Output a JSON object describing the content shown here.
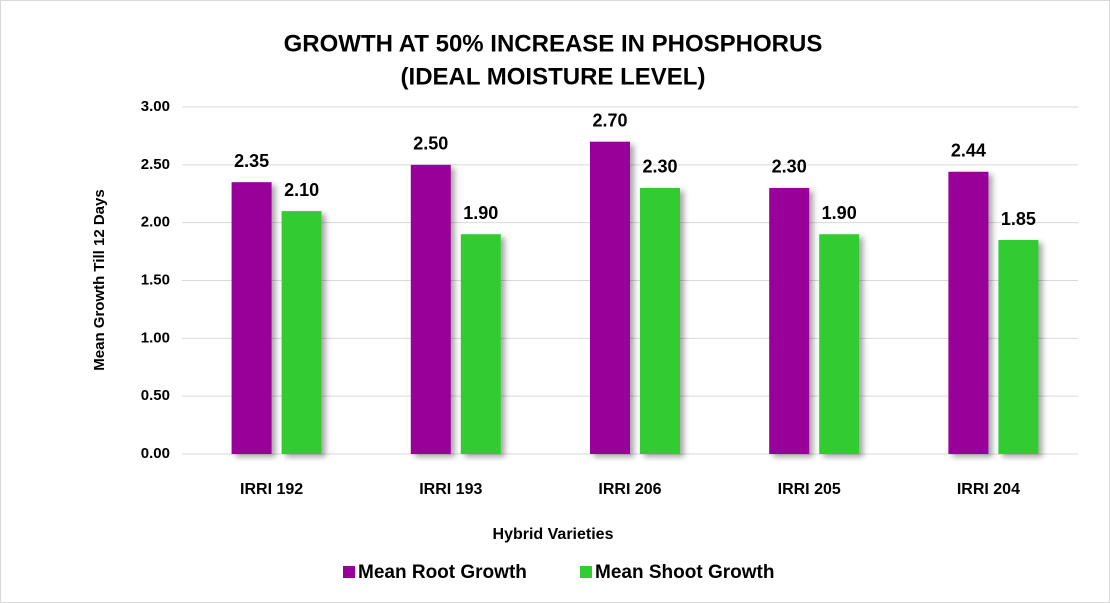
{
  "chart_data": {
    "type": "bar",
    "title": [
      "GROWTH AT 50% INCREASE IN PHOSPHORUS",
      "(IDEAL MOISTURE LEVEL)"
    ],
    "x_label": "Hybrid Varieties",
    "y_label": "Mean Growth Till 12 Days",
    "categories": [
      "IRRI 192",
      "IRRI 193",
      "IRRI 206",
      "IRRI 205",
      "IRRI 204"
    ],
    "series": [
      {
        "name": "Mean Root Growth",
        "color": "#990099",
        "values": [
          2.35,
          2.5,
          2.7,
          2.3,
          2.44
        ],
        "value_labels": [
          "2.35",
          "2.50",
          "2.70",
          "2.30",
          "2.44"
        ]
      },
      {
        "name": "Mean Shoot Growth",
        "color": "#33cc33",
        "values": [
          2.1,
          1.9,
          2.3,
          1.9,
          1.85
        ],
        "value_labels": [
          "2.10",
          "1.90",
          "2.30",
          "1.90",
          "1.85"
        ]
      }
    ],
    "ylim": [
      0,
      3
    ],
    "yticks": [
      {
        "value": 0,
        "label": "0.00"
      },
      {
        "value": 0.5,
        "label": "0.50"
      },
      {
        "value": 1,
        "label": "1.00"
      },
      {
        "value": 1.5,
        "label": "1.50"
      },
      {
        "value": 2,
        "label": "2.00"
      },
      {
        "value": 2.5,
        "label": "2.50"
      },
      {
        "value": 3,
        "label": "3.00"
      }
    ],
    "grid": true,
    "legend": "bottom"
  }
}
